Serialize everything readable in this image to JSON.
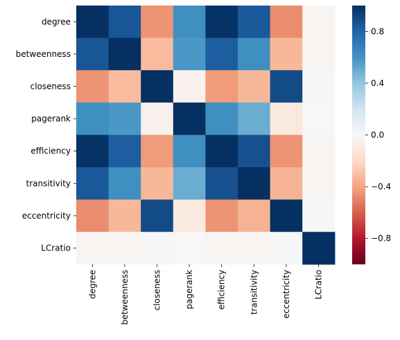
{
  "chart_data": {
    "type": "heatmap",
    "title": "",
    "xlabel": "",
    "ylabel": "",
    "rows": [
      "degree",
      "betweenness",
      "closeness",
      "pagerank",
      "efficiency",
      "transitivity",
      "eccentricity",
      "LCratio"
    ],
    "columns": [
      "degree",
      "betweenness",
      "closeness",
      "pagerank",
      "efficiency",
      "transitivity",
      "eccentricity",
      "LCratio"
    ],
    "values": [
      [
        1.0,
        0.86,
        -0.45,
        0.62,
        0.99,
        0.85,
        -0.47,
        -0.02
      ],
      [
        0.86,
        1.0,
        -0.32,
        0.58,
        0.83,
        0.62,
        -0.33,
        -0.02
      ],
      [
        -0.45,
        -0.32,
        1.0,
        -0.04,
        -0.43,
        -0.33,
        0.9,
        0.01
      ],
      [
        0.62,
        0.58,
        -0.04,
        1.0,
        0.62,
        0.5,
        -0.1,
        0.0
      ],
      [
        0.99,
        0.83,
        -0.43,
        0.62,
        1.0,
        0.88,
        -0.45,
        -0.02
      ],
      [
        0.85,
        0.62,
        -0.33,
        0.5,
        0.88,
        1.0,
        -0.35,
        -0.02
      ],
      [
        -0.47,
        -0.33,
        0.9,
        -0.1,
        -0.45,
        -0.35,
        1.0,
        0.01
      ],
      [
        -0.02,
        -0.02,
        0.01,
        0.0,
        -0.02,
        -0.02,
        0.01,
        1.0
      ]
    ],
    "colormap": "RdBu",
    "vmin": -1.0,
    "vmax": 1.0,
    "colorbar": {
      "ticks": [
        0.8,
        0.4,
        0.0,
        -0.4,
        -0.8
      ],
      "tick_labels": [
        "0.8",
        "0.4",
        "0.0",
        "−0.4",
        "−0.8"
      ],
      "placement": "right"
    },
    "grid": false,
    "legend": "none"
  }
}
